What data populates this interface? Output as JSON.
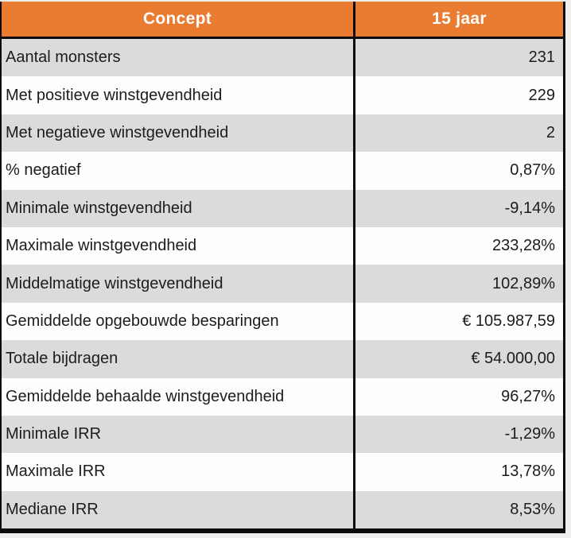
{
  "chart_data": {
    "type": "table",
    "columns": [
      "Concept",
      "15 jaar"
    ],
    "rows": [
      {
        "label": "Aantal monsters",
        "value": "231"
      },
      {
        "label": "Met positieve winstgevendheid",
        "value": "229"
      },
      {
        "label": "Met negatieve winstgevendheid",
        "value": "2"
      },
      {
        "label": "% negatief",
        "value": "0,87%"
      },
      {
        "label": "Minimale winstgevendheid",
        "value": "-9,14%"
      },
      {
        "label": "Maximale winstgevendheid",
        "value": "233,28%"
      },
      {
        "label": "Middelmatige winstgevendheid",
        "value": "102,89%"
      },
      {
        "label": "Gemiddelde opgebouwde besparingen",
        "value": "€ 105.987,59"
      },
      {
        "label": "Totale bijdragen",
        "value": "€ 54.000,00"
      },
      {
        "label": "Gemiddelde behaalde winstgevendheid",
        "value": "96,27%"
      },
      {
        "label": "Minimale IRR",
        "value": "-1,29%"
      },
      {
        "label": "Maximale IRR",
        "value": "13,78%"
      },
      {
        "label": "Mediane IRR",
        "value": "8,53%"
      }
    ]
  },
  "colors": {
    "header_bg": "#E97C30",
    "header_text": "#FFFFFF",
    "row_alt_bg": "#DBDBDB",
    "row_bg": "#FEFEFE",
    "border": "#0C0C0C",
    "text": "#1C1C1C"
  }
}
